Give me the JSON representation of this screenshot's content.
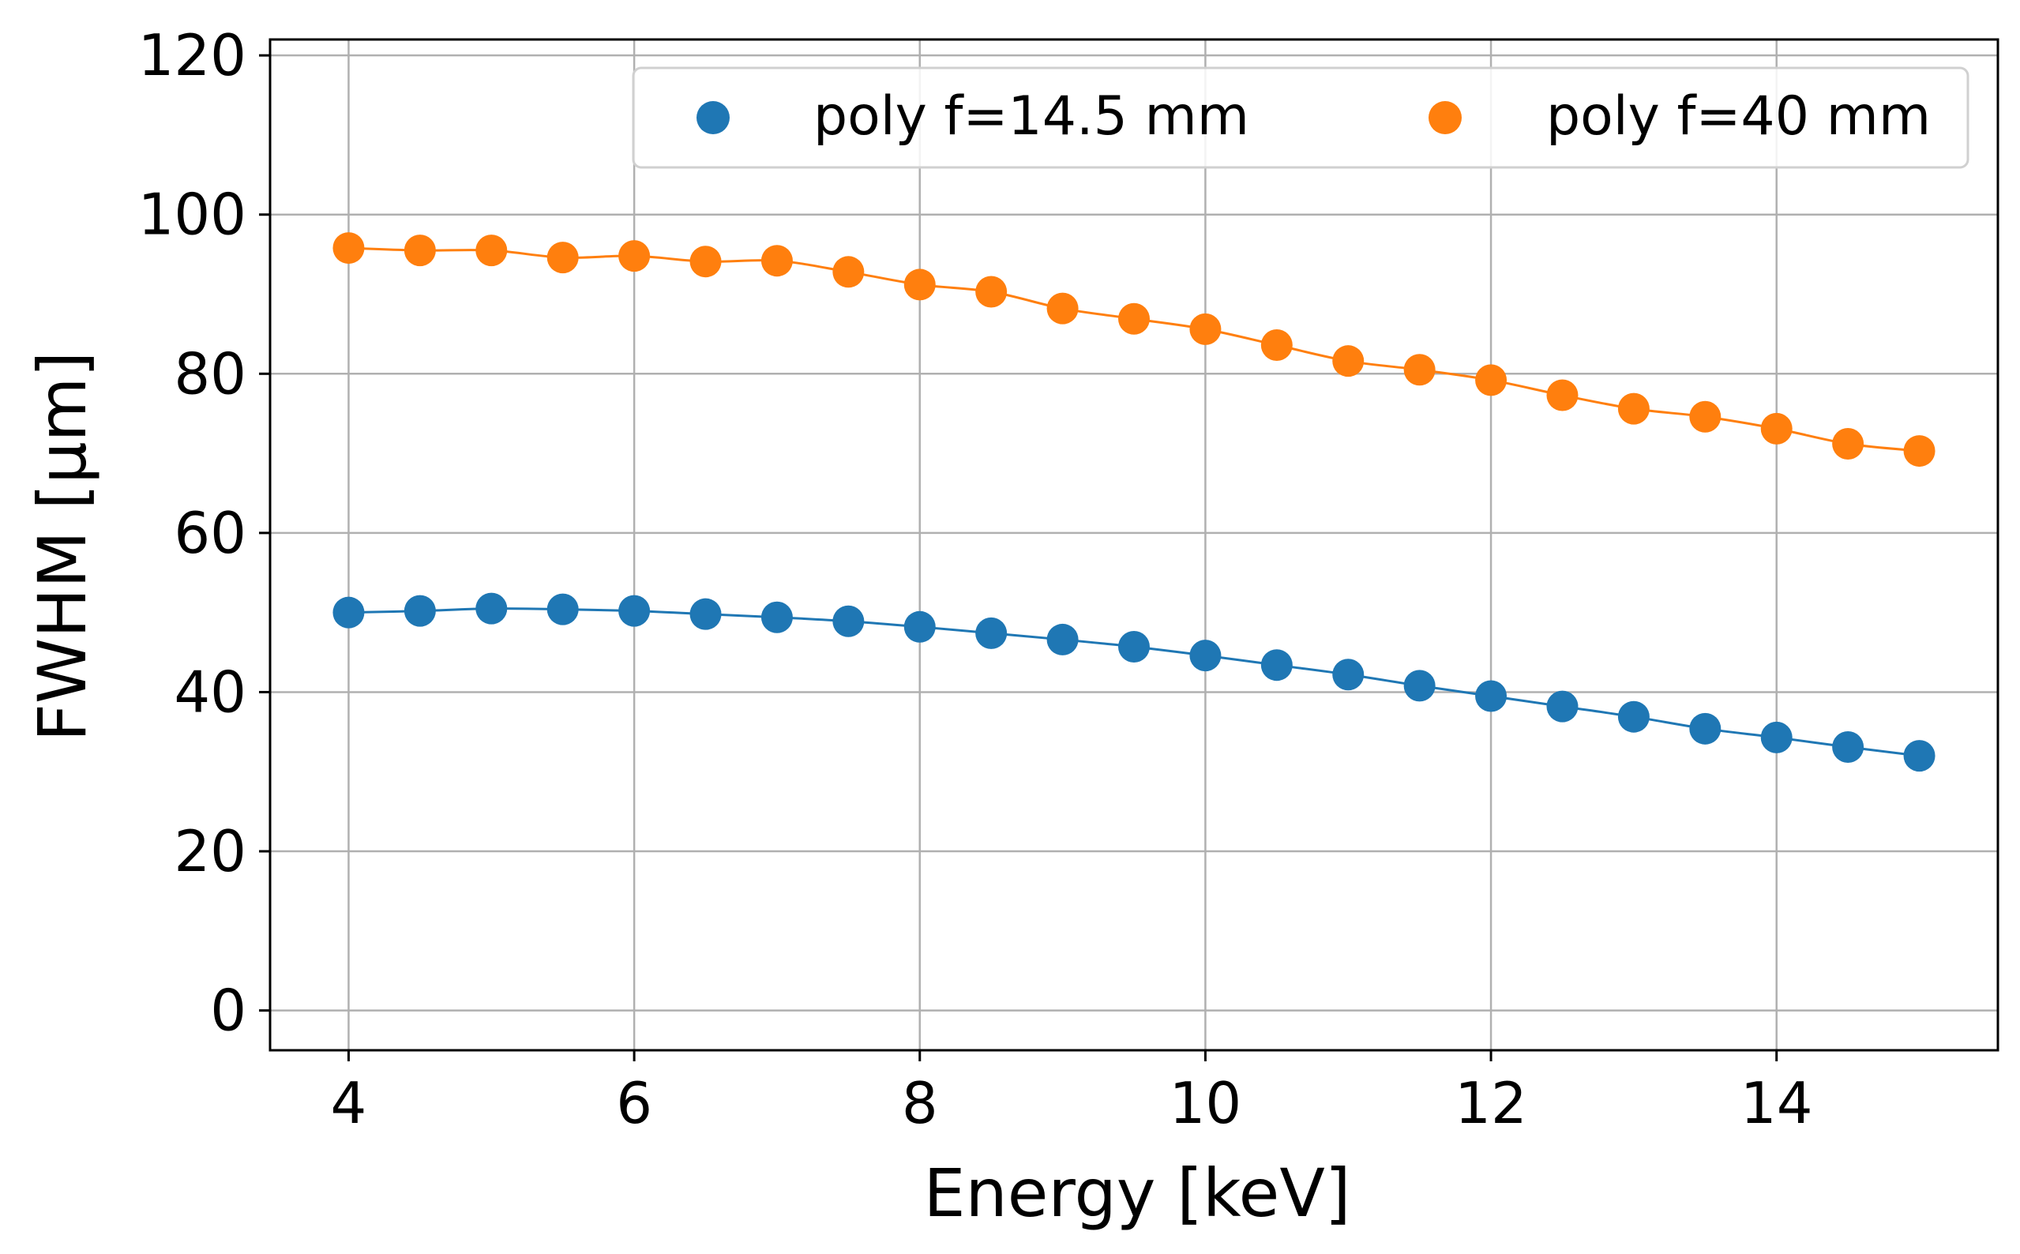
{
  "chart_data": {
    "type": "scatter",
    "title": "",
    "xlabel": "Energy [keV]",
    "ylabel": "FWHM [µm]",
    "xlim": [
      3.45,
      15.55
    ],
    "ylim": [
      -5,
      122
    ],
    "xticks": [
      4,
      6,
      8,
      10,
      12,
      14
    ],
    "xtick_labels": [
      "4",
      "6",
      "8",
      "10",
      "12",
      "14"
    ],
    "yticks": [
      0,
      20,
      40,
      60,
      80,
      100,
      120
    ],
    "ytick_labels": [
      "0",
      "20",
      "40",
      "60",
      "80",
      "100",
      "120"
    ],
    "grid": true,
    "legend_position": "top-right",
    "x": [
      4,
      4.5,
      5,
      5.5,
      6,
      6.5,
      7,
      7.5,
      8,
      8.5,
      9,
      9.5,
      10,
      10.5,
      11,
      11.5,
      12,
      12.5,
      13,
      13.5,
      14,
      14.5,
      15
    ],
    "series": [
      {
        "name": "poly f=14.5 mm",
        "color": "#1f77b4",
        "values": [
          50.0,
          50.2,
          50.5,
          50.4,
          50.2,
          49.8,
          49.4,
          48.9,
          48.2,
          47.4,
          46.6,
          45.7,
          44.6,
          43.4,
          42.2,
          40.8,
          39.5,
          38.2,
          36.9,
          35.4,
          34.3,
          33.1,
          32.0
        ]
      },
      {
        "name": "poly f=40 mm",
        "color": "#ff7f0e",
        "values": [
          95.8,
          95.5,
          95.5,
          94.6,
          94.8,
          94.1,
          94.2,
          92.8,
          91.2,
          90.3,
          88.2,
          86.9,
          85.6,
          83.6,
          81.6,
          80.5,
          79.2,
          77.3,
          75.6,
          74.6,
          73.1,
          71.2,
          70.3
        ]
      }
    ]
  }
}
